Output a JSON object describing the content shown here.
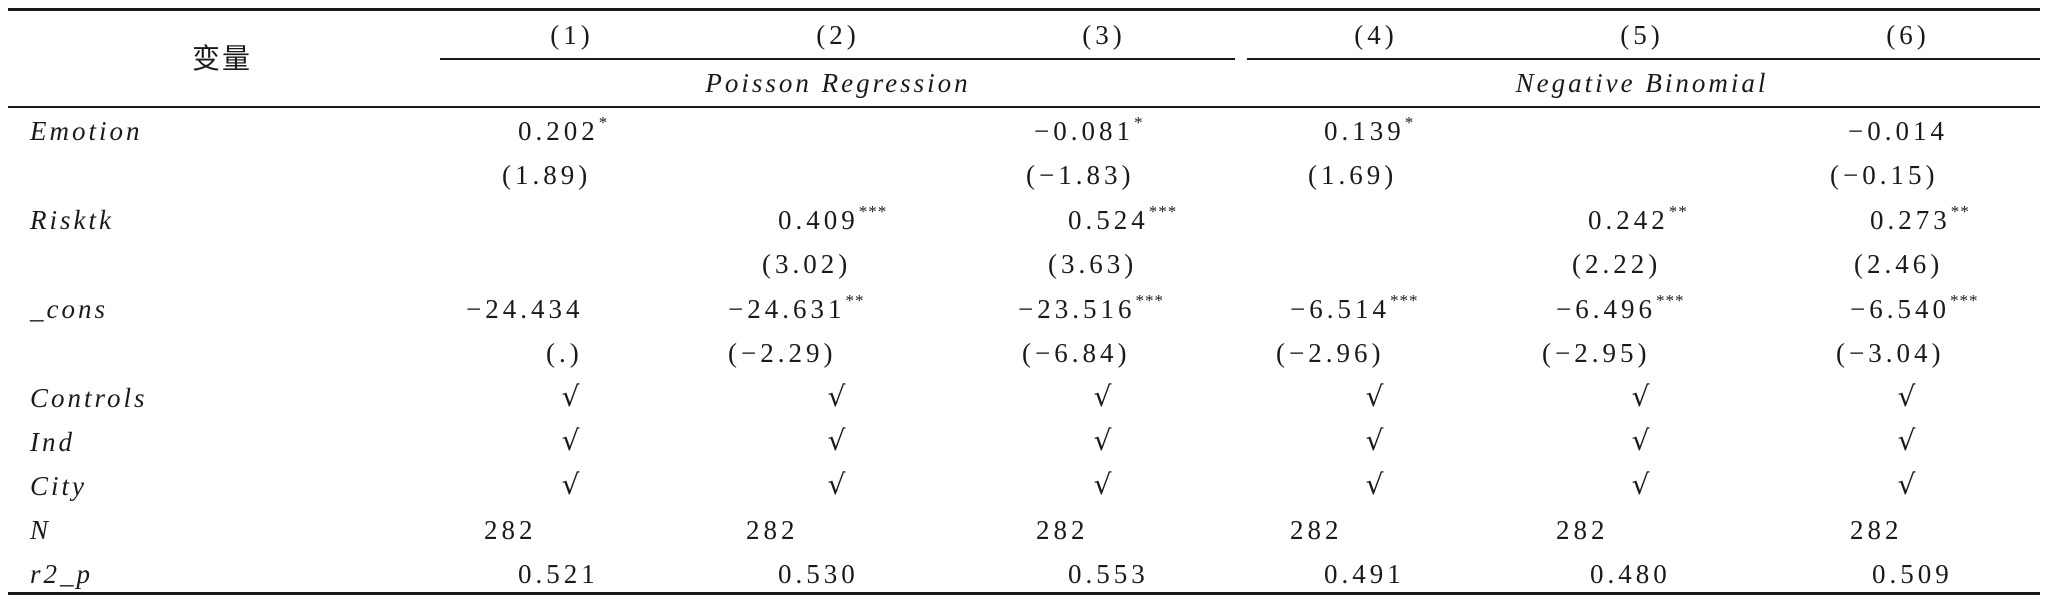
{
  "header": {
    "variable_label": "变量",
    "columns": [
      "(1)",
      "(2)",
      "(3)",
      "(4)",
      "(5)",
      "(6)"
    ],
    "groups": [
      "Poisson Regression",
      "Negative Binomial"
    ]
  },
  "rows": {
    "emotion": {
      "label": "Emotion",
      "coef": [
        "0.202",
        "",
        "−0.081",
        "0.139",
        "",
        "−0.014"
      ],
      "stars": [
        "*",
        "",
        "*",
        "*",
        "",
        ""
      ],
      "t": [
        "(1.89)",
        "",
        "(−1.83)",
        "(1.69)",
        "",
        "(−0.15)"
      ]
    },
    "risktk": {
      "label": "Risktk",
      "coef": [
        "",
        "0.409",
        "0.524",
        "",
        "0.242",
        "0.273"
      ],
      "stars": [
        "",
        "***",
        "***",
        "",
        "**",
        "**"
      ],
      "t": [
        "",
        "(3.02)",
        "(3.63)",
        "",
        "(2.22)",
        "(2.46)"
      ]
    },
    "cons": {
      "label": "_cons",
      "coef": [
        "−24.434",
        "−24.631",
        "−23.516",
        "−6.514",
        "−6.496",
        "−6.540"
      ],
      "stars": [
        "",
        "**",
        "***",
        "***",
        "***",
        "***"
      ],
      "t": [
        "(.)",
        "(−2.29)",
        "(−6.84)",
        "(−2.96)",
        "(−2.95)",
        "(−3.04)"
      ]
    },
    "controls": {
      "label": "Controls",
      "values": [
        "√",
        "√",
        "√",
        "√",
        "√",
        "√"
      ]
    },
    "ind": {
      "label": "Ind",
      "values": [
        "√",
        "√",
        "√",
        "√",
        "√",
        "√"
      ]
    },
    "city": {
      "label": "City",
      "values": [
        "√",
        "√",
        "√",
        "√",
        "√",
        "√"
      ]
    },
    "n": {
      "label": "N",
      "values": [
        "282",
        "282",
        "282",
        "282",
        "282",
        "282"
      ]
    },
    "r2p": {
      "label": "r2_p",
      "values": [
        "0.521",
        "0.530",
        "0.553",
        "0.491",
        "0.480",
        "0.509"
      ]
    }
  }
}
